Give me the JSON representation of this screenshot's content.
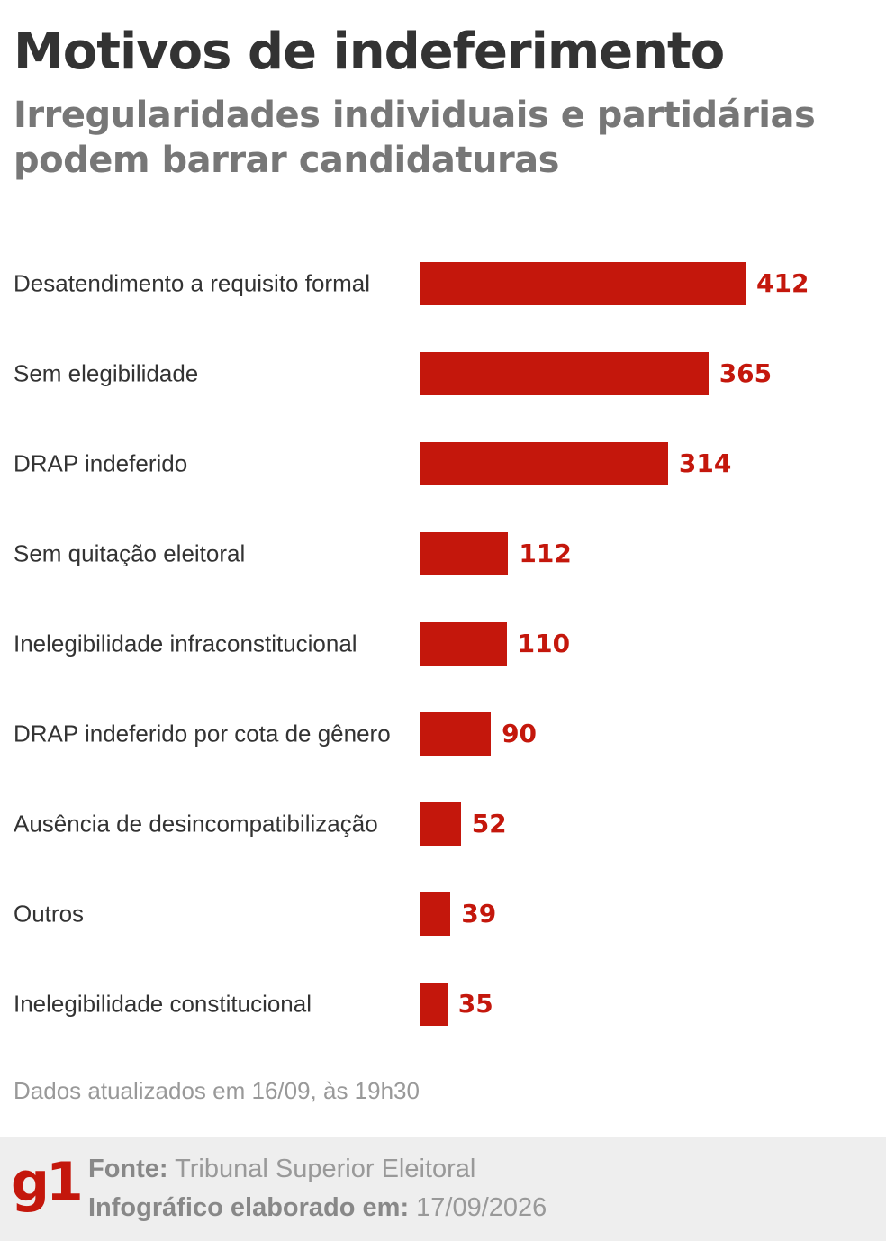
{
  "header": {
    "title": "Motivos de indeferimento",
    "subtitle": "Irregularidades individuais e partidárias podem barrar candidaturas"
  },
  "chart_data": {
    "type": "bar",
    "orientation": "horizontal",
    "categories": [
      "Desatendimento a requisito formal",
      "Sem elegibilidade",
      "DRAP indeferido",
      "Sem quitação eleitoral",
      "Inelegibilidade infraconstitucional",
      "DRAP indeferido por cota de gênero",
      "Ausência de desincompatibilização",
      "Outros",
      "Inelegibilidade constitucional"
    ],
    "values": [
      412,
      365,
      314,
      112,
      110,
      90,
      52,
      39,
      35
    ],
    "value_labels": [
      "412",
      "365",
      "314",
      "112",
      "110",
      "90",
      "52",
      "39",
      "35"
    ],
    "bar_color": "#c4170c",
    "grid": false,
    "legend": "none"
  },
  "note": "Dados atualizados em 16/09, às 19h30",
  "footer": {
    "logo": "g1",
    "source_label": "Fonte:",
    "source_value": "Tribunal Superior Eleitoral",
    "date_label": "Infográfico elaborado em:",
    "date_value": "17/09/2026"
  }
}
